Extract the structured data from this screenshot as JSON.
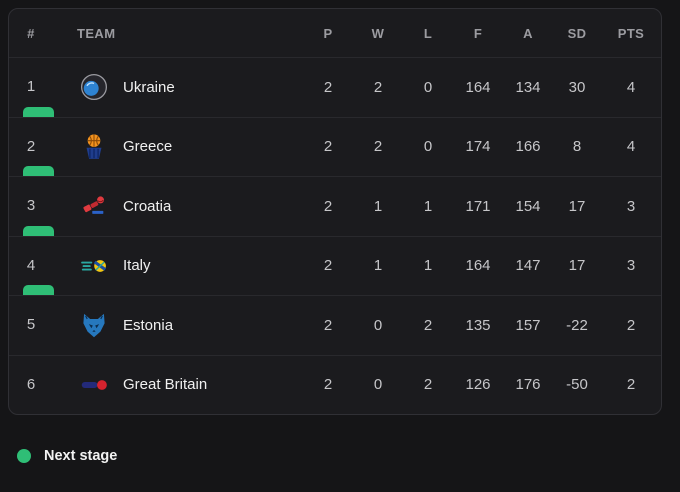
{
  "colors": {
    "next_stage_green": "#2fbe76",
    "card_background": "#1b1b1e",
    "page_background": "#151517"
  },
  "table": {
    "columns": [
      "#",
      "TEAM",
      "P",
      "W",
      "L",
      "F",
      "A",
      "SD",
      "PTS"
    ],
    "rows": [
      {
        "pos": "1",
        "team": "Ukraine",
        "p": "2",
        "w": "2",
        "l": "0",
        "f": "164",
        "a": "134",
        "sd": "30",
        "pts": "4",
        "next_stage": true,
        "logo": "ukraine-crest-icon"
      },
      {
        "pos": "2",
        "team": "Greece",
        "p": "2",
        "w": "2",
        "l": "0",
        "f": "174",
        "a": "166",
        "sd": "8",
        "pts": "4",
        "next_stage": true,
        "logo": "greece-crest-icon"
      },
      {
        "pos": "3",
        "team": "Croatia",
        "p": "2",
        "w": "1",
        "l": "1",
        "f": "171",
        "a": "154",
        "sd": "17",
        "pts": "3",
        "next_stage": true,
        "logo": "croatia-crest-icon"
      },
      {
        "pos": "4",
        "team": "Italy",
        "p": "2",
        "w": "1",
        "l": "1",
        "f": "164",
        "a": "147",
        "sd": "17",
        "pts": "3",
        "next_stage": true,
        "logo": "italy-crest-icon"
      },
      {
        "pos": "5",
        "team": "Estonia",
        "p": "2",
        "w": "0",
        "l": "2",
        "f": "135",
        "a": "157",
        "sd": "-22",
        "pts": "2",
        "next_stage": false,
        "logo": "estonia-crest-icon"
      },
      {
        "pos": "6",
        "team": "Great Britain",
        "p": "2",
        "w": "0",
        "l": "2",
        "f": "126",
        "a": "176",
        "sd": "-50",
        "pts": "2",
        "next_stage": false,
        "logo": "great-britain-crest-icon"
      }
    ]
  },
  "legend": {
    "label": "Next stage"
  }
}
